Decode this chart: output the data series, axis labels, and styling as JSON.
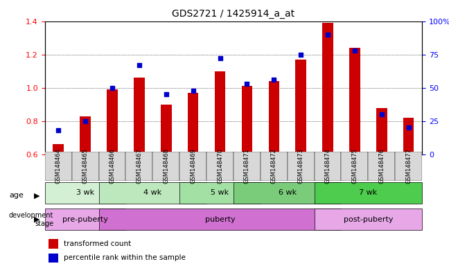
{
  "title": "GDS2721 / 1425914_a_at",
  "samples": [
    "GSM148464",
    "GSM148465",
    "GSM148466",
    "GSM148467",
    "GSM148468",
    "GSM148469",
    "GSM148470",
    "GSM148471",
    "GSM148472",
    "GSM148473",
    "GSM148474",
    "GSM148475",
    "GSM148476",
    "GSM148477"
  ],
  "transformed_count": [
    0.66,
    0.83,
    0.99,
    1.06,
    0.9,
    0.97,
    1.1,
    1.01,
    1.04,
    1.17,
    1.39,
    1.24,
    0.88,
    0.82
  ],
  "percentile_rank": [
    18,
    25,
    50,
    67,
    45,
    48,
    72,
    53,
    56,
    75,
    90,
    78,
    30,
    20
  ],
  "ylim_left": [
    0.6,
    1.4
  ],
  "ylim_right": [
    0,
    100
  ],
  "yticks_left": [
    0.6,
    0.8,
    1.0,
    1.2,
    1.4
  ],
  "yticks_right": [
    0,
    25,
    50,
    75,
    100
  ],
  "ytick_right_labels": [
    "0",
    "25",
    "50",
    "75",
    "100%"
  ],
  "bar_color": "#cc0000",
  "dot_color": "#0000cc",
  "grid_color": "#000000",
  "age_groups": [
    {
      "label": "3 wk",
      "start": 0,
      "end": 2,
      "color": "#ccffcc"
    },
    {
      "label": "4 wk",
      "start": 2,
      "end": 5,
      "color": "#aaddaa"
    },
    {
      "label": "5 wk",
      "start": 5,
      "end": 7,
      "color": "#88cc88"
    },
    {
      "label": "6 wk",
      "start": 7,
      "end": 10,
      "color": "#55aa55"
    },
    {
      "label": "7 wk",
      "start": 10,
      "end": 13,
      "color": "#33bb33"
    }
  ],
  "dev_groups": [
    {
      "label": "pre-puberty",
      "start": 0,
      "end": 2,
      "color": "#dd88dd"
    },
    {
      "label": "puberty",
      "start": 2,
      "end": 10,
      "color": "#cc66cc"
    },
    {
      "label": "post-puberty",
      "start": 10,
      "end": 13,
      "color": "#dd88dd"
    }
  ],
  "legend_items": [
    {
      "label": "transformed count",
      "color": "#cc0000"
    },
    {
      "label": "percentile rank within the sample",
      "color": "#0000cc"
    }
  ]
}
